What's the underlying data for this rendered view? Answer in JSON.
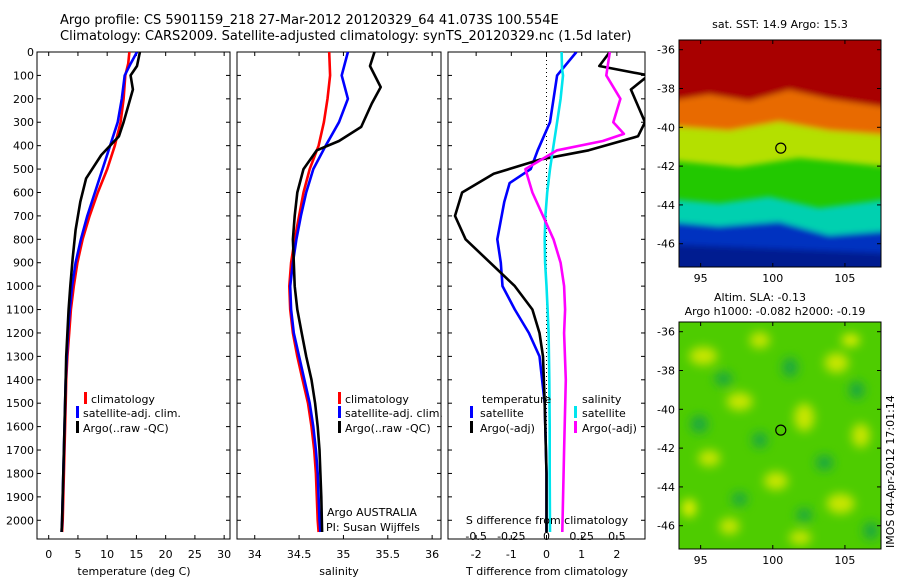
{
  "header": {
    "line1": "Argo profile: CS 5901159_218 27-Mar-2012 20120329_64 41.073S 100.554E",
    "line2": "Climatology: CARS2009. Satellite-adjusted climatology: synTS_20120329.nc (1.5d later)"
  },
  "colors": {
    "climatology": "#ff0000",
    "satellite": "#0000ff",
    "argo": "#000000",
    "satellite_salinity": "#00e5ee",
    "argo_adj_salinity": "#ff00ff"
  },
  "panel1": {
    "xlabel": "temperature (deg C)",
    "legend": [
      "climatology",
      "satellite-adj. clim.",
      "Argo(..raw -QC)"
    ]
  },
  "panel2": {
    "xlabel": "salinity",
    "legend": [
      "climatology",
      "satellite-adj. clim.",
      "Argo(..raw -QC)"
    ],
    "note1": "Argo AUSTRALIA",
    "note2": "PI: Susan Wijffels"
  },
  "panel3": {
    "xlabel": "T difference from climatology",
    "top_label": "S difference from climatology",
    "legend_temp_title": "temperature",
    "legend_sal_title": "salinity",
    "legend_temp": [
      "satellite",
      "Argo(-adj)"
    ],
    "legend_sal": [
      "satellite",
      "Argo(-adj)"
    ]
  },
  "map_sst": {
    "title": "sat. SST: 14.9 Argo: 15.3"
  },
  "map_sla": {
    "title1": "Altim. SLA: -0.13",
    "title2": "Argo h1000: -0.082 h2000: -0.19",
    "side_text": "IMOS 04-Apr-2012 17:01:14"
  },
  "chart_data": [
    {
      "type": "line",
      "name": "temperature profile",
      "xlabel": "temperature (deg C)",
      "ylabel": "",
      "xlim": [
        -2,
        31
      ],
      "ylim": [
        2080,
        0
      ],
      "xticks": [
        0,
        5,
        10,
        15,
        20,
        25,
        30
      ],
      "yticks": [
        0,
        100,
        200,
        300,
        400,
        500,
        600,
        700,
        800,
        900,
        1000,
        1100,
        1200,
        1300,
        1400,
        1500,
        1600,
        1700,
        1800,
        1900,
        2000
      ],
      "series": [
        {
          "name": "climatology",
          "color": "#ff0000",
          "x": [
            13.8,
            13.6,
            13.1,
            12.8,
            12.3,
            11.3,
            10.0,
            8.4,
            7.0,
            5.8,
            4.9,
            4.3,
            3.8,
            3.5,
            3.2,
            3.0,
            2.9,
            2.8,
            2.7,
            2.6,
            2.5,
            2.4,
            2.3
          ],
          "y": [
            0,
            50,
            100,
            200,
            300,
            400,
            500,
            600,
            700,
            800,
            900,
            1000,
            1100,
            1200,
            1300,
            1400,
            1500,
            1600,
            1700,
            1800,
            1900,
            2000,
            2050
          ]
        },
        {
          "name": "satellite-adj. clim.",
          "color": "#0000ff",
          "x": [
            15.1,
            14.0,
            13.0,
            12.5,
            11.8,
            10.5,
            9.2,
            7.9,
            6.6,
            5.5,
            4.6,
            4.0,
            3.6,
            3.3,
            3.1,
            2.9,
            2.8,
            2.7,
            2.6,
            2.5,
            2.4,
            2.3,
            2.2
          ],
          "y": [
            0,
            50,
            100,
            200,
            300,
            400,
            500,
            600,
            700,
            800,
            900,
            1000,
            1100,
            1200,
            1300,
            1400,
            1500,
            1600,
            1700,
            1800,
            1900,
            2000,
            2050
          ]
        },
        {
          "name": "Argo(..raw -QC)",
          "color": "#000000",
          "x": [
            15.6,
            15.1,
            14.0,
            14.4,
            12.8,
            12.0,
            9.0,
            6.4,
            5.4,
            4.6,
            4.1,
            3.7,
            3.4,
            3.2,
            3.0,
            2.9,
            2.8,
            2.7,
            2.6,
            2.5,
            2.4,
            2.3,
            2.2
          ],
          "y": [
            0,
            60,
            100,
            160,
            300,
            360,
            440,
            540,
            640,
            760,
            880,
            1000,
            1100,
            1200,
            1300,
            1400,
            1500,
            1600,
            1700,
            1800,
            1900,
            2000,
            2050
          ]
        }
      ]
    },
    {
      "type": "line",
      "name": "salinity profile",
      "xlabel": "salinity",
      "ylabel": "",
      "xlim": [
        33.8,
        36.1
      ],
      "ylim": [
        2080,
        0
      ],
      "xticks": [
        34,
        34.5,
        35,
        35.5,
        36
      ],
      "series": [
        {
          "name": "climatology",
          "color": "#ff0000",
          "x": [
            34.84,
            34.85,
            34.82,
            34.78,
            34.72,
            34.62,
            34.55,
            34.5,
            34.45,
            34.41,
            34.39,
            34.4,
            34.43,
            34.48,
            34.54,
            34.6,
            34.64,
            34.67,
            34.69,
            34.7,
            34.71,
            34.72
          ],
          "y": [
            0,
            100,
            200,
            300,
            400,
            500,
            600,
            700,
            800,
            900,
            1000,
            1100,
            1200,
            1300,
            1400,
            1500,
            1600,
            1700,
            1800,
            1900,
            2000,
            2050
          ]
        },
        {
          "name": "satellite-adj. clim.",
          "color": "#0000ff",
          "x": [
            35.05,
            34.98,
            35.05,
            34.95,
            34.8,
            34.66,
            34.58,
            34.52,
            34.47,
            34.43,
            34.4,
            34.41,
            34.44,
            34.5,
            34.56,
            34.62,
            34.66,
            34.69,
            34.71,
            34.72,
            34.73,
            34.74
          ],
          "y": [
            0,
            100,
            200,
            300,
            400,
            500,
            600,
            700,
            800,
            900,
            1000,
            1100,
            1200,
            1300,
            1400,
            1500,
            1600,
            1700,
            1800,
            1900,
            2000,
            2050
          ]
        },
        {
          "name": "Argo(..raw -QC)",
          "color": "#000000",
          "x": [
            35.35,
            35.3,
            35.42,
            35.32,
            35.2,
            34.95,
            34.7,
            34.55,
            34.48,
            34.45,
            34.43,
            34.44,
            34.45,
            34.48,
            34.53,
            34.58,
            34.64,
            34.68,
            34.71,
            34.73,
            34.74,
            34.75,
            34.76
          ],
          "y": [
            0,
            60,
            150,
            220,
            320,
            380,
            420,
            500,
            600,
            700,
            800,
            900,
            1000,
            1100,
            1200,
            1300,
            1400,
            1500,
            1600,
            1700,
            1800,
            1900,
            2050
          ]
        }
      ]
    },
    {
      "type": "line",
      "name": "difference from climatology",
      "xlabel": "T difference from climatology",
      "top_label": "S difference from climatology",
      "xlim": [
        -2.8,
        2.8
      ],
      "ylim": [
        2080,
        0
      ],
      "xticks": [
        -2,
        -1,
        0,
        1,
        2
      ],
      "top_ticks": [
        -0.5,
        -0.25,
        0,
        0.25,
        0.5
      ],
      "series": [
        {
          "name": "temperature satellite",
          "color": "#0000ff",
          "x": [
            0.85,
            0.3,
            0.1,
            -0.25,
            -0.45,
            -1.05,
            -1.2,
            -1.4,
            -1.3,
            -1.25,
            -0.9,
            -0.5,
            -0.2,
            -0.05,
            0.0,
            0.0
          ],
          "y": [
            0,
            100,
            300,
            420,
            500,
            560,
            640,
            800,
            900,
            1000,
            1100,
            1200,
            1300,
            1500,
            1800,
            2050
          ]
        },
        {
          "name": "temperature Argo(-adj)",
          "color": "#000000",
          "x": [
            1.8,
            1.5,
            2.9,
            2.4,
            2.8,
            2.6,
            1.2,
            -0.2,
            -1.5,
            -2.4,
            -2.6,
            -2.3,
            -1.6,
            -0.9,
            -0.4,
            -0.2,
            -0.1,
            -0.05,
            0.0,
            0.0
          ],
          "y": [
            0,
            60,
            100,
            160,
            300,
            360,
            420,
            460,
            520,
            600,
            700,
            800,
            900,
            1000,
            1100,
            1200,
            1300,
            1500,
            1800,
            2050
          ]
        },
        {
          "name": "salinity satellite",
          "color": "#00e5ee",
          "x": [
            0.43,
            0.44,
            0.47,
            0.4,
            0.3,
            0.2,
            0.1,
            0.02,
            -0.03,
            -0.05,
            -0.04,
            0.0,
            0.03,
            0.06,
            0.08,
            0.09,
            0.09,
            0.1
          ],
          "y": [
            0,
            70,
            100,
            200,
            300,
            400,
            500,
            600,
            700,
            800,
            900,
            1000,
            1100,
            1200,
            1400,
            1600,
            1800,
            2050
          ]
        },
        {
          "name": "salinity Argo(-adj)",
          "color": "#ff00ff",
          "x": [
            1.8,
            1.7,
            2.1,
            1.9,
            2.2,
            1.6,
            0.3,
            -0.6,
            -0.4,
            -0.1,
            0.2,
            0.4,
            0.5,
            0.53,
            0.5,
            0.55,
            0.5,
            0.45
          ],
          "y": [
            0,
            100,
            200,
            300,
            350,
            380,
            420,
            500,
            600,
            700,
            800,
            900,
            1000,
            1100,
            1200,
            1400,
            1700,
            2050
          ]
        }
      ]
    },
    {
      "type": "heatmap",
      "name": "SST map",
      "title": "sat. SST: 14.9 Argo: 15.3",
      "xlim": [
        93.5,
        107.5
      ],
      "ylim": [
        -47.2,
        -35.5
      ],
      "xticks": [
        95,
        100,
        105
      ],
      "yticks": [
        -36,
        -38,
        -40,
        -42,
        -44,
        -46
      ],
      "argo_position": [
        100.554,
        -41.073
      ]
    },
    {
      "type": "heatmap",
      "name": "SLA map",
      "xlim": [
        93.5,
        107.5
      ],
      "ylim": [
        -47.2,
        -35.5
      ],
      "xticks": [
        95,
        100,
        105
      ],
      "yticks": [
        -36,
        -38,
        -40,
        -42,
        -44,
        -46
      ],
      "argo_position": [
        100.554,
        -41.073
      ]
    }
  ]
}
